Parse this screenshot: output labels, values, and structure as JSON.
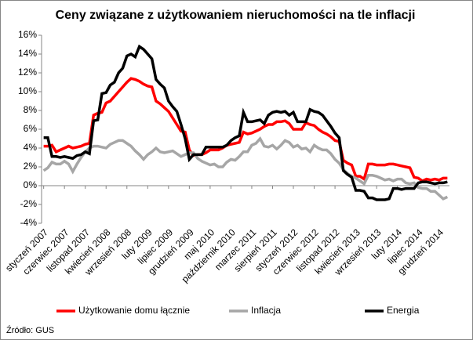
{
  "chart_data": {
    "type": "line",
    "title": "Ceny związane z użytkowaniem nieruchomości na tle inflacji",
    "source": "Źródło: GUS",
    "categories": [
      "styczeń 2007",
      null,
      null,
      null,
      null,
      "czerwiec 2007",
      null,
      null,
      null,
      null,
      "listopad 2007",
      null,
      null,
      null,
      null,
      "kwiecień 2008",
      null,
      null,
      null,
      null,
      "wrzesień 2008",
      null,
      null,
      null,
      null,
      "luty 2009",
      null,
      null,
      null,
      null,
      "lipiec 2009",
      null,
      null,
      null,
      null,
      "grudzień 2009",
      null,
      null,
      null,
      null,
      "maj 2010",
      null,
      null,
      null,
      null,
      "październik 2010",
      null,
      null,
      null,
      null,
      "marzec 2011",
      null,
      null,
      null,
      null,
      "sierpień 2011",
      null,
      null,
      null,
      null,
      "styczeń 2012",
      null,
      null,
      null,
      null,
      "czerwiec 2012",
      null,
      null,
      null,
      null,
      "listopad 2012",
      null,
      null,
      null,
      null,
      "kwiecień 2013",
      null,
      null,
      null,
      null,
      "wrzesień 2013",
      null,
      null,
      null,
      null,
      "luty 2014",
      null,
      null,
      null,
      null,
      "lipiec 2014",
      null,
      null,
      null,
      null,
      "grudzień 2014",
      null,
      null
    ],
    "series": [
      {
        "name": "Użytkowanie domu łącznie",
        "color": "#ff0000",
        "values": [
          4.2,
          4.2,
          4.3,
          3.6,
          3.8,
          4.0,
          4.2,
          4.0,
          4.1,
          4.2,
          4.4,
          4.5,
          7.5,
          7.7,
          7.8,
          8.8,
          9.0,
          9.5,
          10.0,
          10.5,
          11.0,
          11.4,
          11.3,
          11.1,
          10.8,
          10.6,
          10.5,
          9.0,
          8.7,
          8.3,
          7.9,
          7.2,
          6.5,
          5.8,
          5.7,
          3.8,
          3.2,
          3.3,
          3.3,
          3.5,
          3.8,
          3.8,
          3.8,
          4.0,
          4.3,
          4.4,
          4.5,
          4.6,
          5.7,
          5.5,
          5.6,
          5.8,
          6.0,
          6.3,
          6.5,
          6.5,
          6.8,
          6.8,
          6.9,
          6.6,
          6.0,
          6.0,
          6.0,
          6.7,
          6.5,
          6.4,
          6.0,
          5.7,
          5.5,
          5.2,
          4.8,
          4.7,
          2.7,
          2.4,
          2.2,
          1.0,
          1.0,
          0.7,
          2.3,
          2.3,
          2.2,
          2.2,
          2.2,
          2.3,
          2.3,
          2.2,
          2.1,
          2.0,
          1.9,
          0.9,
          0.8,
          0.5,
          0.7,
          0.6,
          0.7,
          0.6,
          0.8,
          0.8
        ]
      },
      {
        "name": "Inflacja",
        "color": "#a6a6a6",
        "values": [
          1.6,
          1.9,
          2.5,
          2.3,
          2.3,
          2.6,
          2.3,
          1.5,
          2.3,
          3.0,
          3.6,
          4.0,
          4.2,
          4.2,
          4.1,
          4.0,
          4.4,
          4.6,
          4.8,
          4.8,
          4.5,
          4.2,
          3.7,
          3.3,
          2.8,
          3.3,
          3.6,
          4.0,
          3.6,
          3.5,
          3.6,
          3.7,
          3.4,
          3.1,
          3.3,
          3.5,
          3.5,
          2.9,
          2.6,
          2.4,
          2.2,
          2.3,
          2.0,
          2.0,
          2.5,
          2.8,
          2.7,
          3.1,
          3.6,
          3.6,
          4.3,
          4.5,
          5.0,
          4.2,
          4.1,
          4.3,
          3.9,
          4.3,
          4.8,
          4.6,
          4.1,
          4.3,
          3.9,
          4.0,
          3.6,
          4.3,
          4.0,
          3.8,
          3.8,
          3.4,
          2.8,
          2.4,
          1.7,
          1.3,
          1.0,
          0.8,
          0.5,
          0.2,
          1.1,
          1.1,
          1.0,
          0.8,
          0.6,
          0.7,
          0.5,
          0.7,
          0.7,
          0.3,
          0.2,
          0.3,
          -0.2,
          -0.3,
          -0.3,
          -0.6,
          -0.6,
          -1.0,
          -1.4,
          -1.2
        ]
      },
      {
        "name": "Energia",
        "color": "#000000",
        "values": [
          5.1,
          5.1,
          3.1,
          3.1,
          3.0,
          3.1,
          3.0,
          2.9,
          3.2,
          3.3,
          3.6,
          3.4,
          6.9,
          7.0,
          9.8,
          9.9,
          10.7,
          11.0,
          12.0,
          12.5,
          13.8,
          14.0,
          13.7,
          14.8,
          14.5,
          14.0,
          13.5,
          11.3,
          10.8,
          10.4,
          9.0,
          8.4,
          7.9,
          6.5,
          5.0,
          2.8,
          3.3,
          3.3,
          3.3,
          4.1,
          4.1,
          4.1,
          4.1,
          4.1,
          4.3,
          4.8,
          5.1,
          5.3,
          7.8,
          6.8,
          6.8,
          6.9,
          7.0,
          6.6,
          7.5,
          7.8,
          7.9,
          7.8,
          7.9,
          7.5,
          7.8,
          6.8,
          6.8,
          6.8,
          8.1,
          7.9,
          7.8,
          7.5,
          6.9,
          6.3,
          5.6,
          5.1,
          1.6,
          1.2,
          0.9,
          -0.5,
          -0.5,
          -0.6,
          -1.3,
          -1.3,
          -1.5,
          -1.5,
          -1.5,
          -1.4,
          -0.3,
          -0.3,
          -0.4,
          -0.3,
          -0.3,
          -0.3,
          0.3,
          0.4,
          0.4,
          0.3,
          0.2,
          0.3,
          0.3,
          0.4
        ]
      }
    ],
    "ylim": [
      -4,
      16
    ],
    "yticks": [
      {
        "value": -4,
        "label": "-4%"
      },
      {
        "value": -2,
        "label": "-2%"
      },
      {
        "value": 0,
        "label": "0%"
      },
      {
        "value": 2,
        "label": "2%"
      },
      {
        "value": 4,
        "label": "4%"
      },
      {
        "value": 6,
        "label": "6%"
      },
      {
        "value": 8,
        "label": "8%"
      },
      {
        "value": 10,
        "label": "10%"
      },
      {
        "value": 12,
        "label": "12%"
      },
      {
        "value": 14,
        "label": "14%"
      },
      {
        "value": 16,
        "label": "16%"
      }
    ],
    "grid": false,
    "legend": "bottom"
  }
}
